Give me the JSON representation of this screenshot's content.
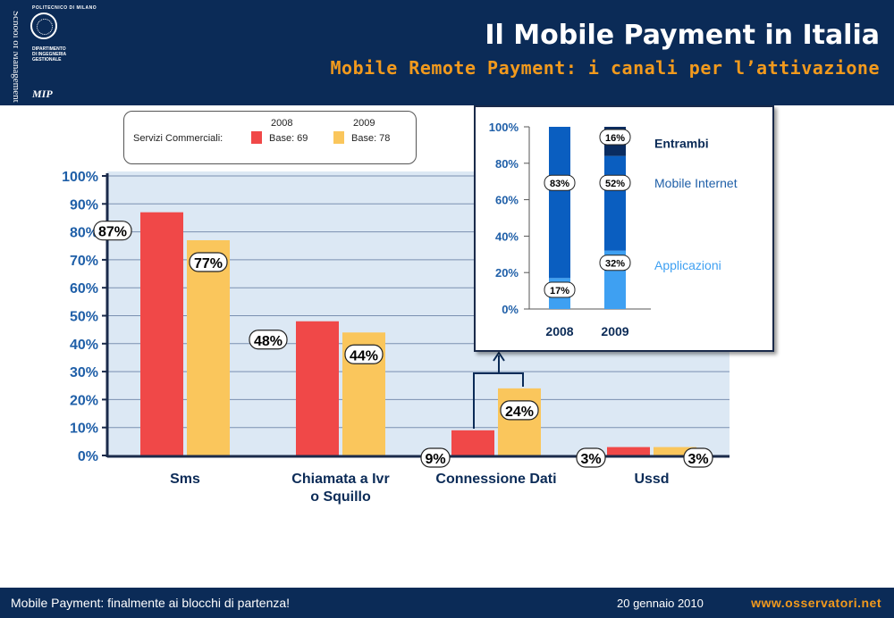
{
  "header": {
    "side_text": "School of Management",
    "university": "POLITECNICO DI MILANO",
    "department": [
      "DIPARTIMENTO",
      "DI INGEGNERIA",
      "GESTIONALE"
    ],
    "mip": "MIP",
    "title": "Il Mobile Payment in Italia",
    "subtitle": "Mobile Remote Payment: i canali per l’attivazione"
  },
  "legend": {
    "label": "Servizi Commerciali:",
    "entries": [
      {
        "year": "2008",
        "base": "Base: 69",
        "color": "#f04848"
      },
      {
        "year": "2009",
        "base": "Base: 78",
        "color": "#fac65c"
      }
    ]
  },
  "footer": {
    "left": "Mobile Payment: finalmente ai blocchi di partenza!",
    "date": "20 gennaio 2010",
    "url": "www.osservatori.net"
  },
  "chart_data": [
    {
      "type": "bar",
      "categories": [
        "Sms",
        "Chiamata a Ivr\no Squillo",
        "Connessione Dati",
        "Ussd"
      ],
      "category_lines": [
        [
          "Sms"
        ],
        [
          "Chiamata a Ivr",
          "o Squillo"
        ],
        [
          "Connessione Dati"
        ],
        [
          "Ussd"
        ]
      ],
      "series": [
        {
          "name": "2008",
          "values": [
            87,
            48,
            9,
            3
          ],
          "labels": [
            "87%",
            "48%",
            "9%",
            "3%"
          ],
          "color": "#f04848"
        },
        {
          "name": "2009",
          "values": [
            77,
            44,
            24,
            3
          ],
          "labels": [
            "77%",
            "44%",
            "24%",
            "3%"
          ],
          "color": "#fac65c"
        }
      ],
      "ylim": [
        0,
        100
      ],
      "yticks": [
        "0%",
        "10%",
        "20%",
        "30%",
        "40%",
        "50%",
        "60%",
        "70%",
        "80%",
        "90%",
        "100%"
      ],
      "grid": true
    },
    {
      "type": "bar",
      "stacked": true,
      "categories": [
        "2008",
        "2009"
      ],
      "series": [
        {
          "name": "Applicazioni",
          "values": [
            17,
            32
          ],
          "labels": [
            "17%",
            "32%"
          ],
          "color": "#3ea0f2"
        },
        {
          "name": "Mobile Internet",
          "values": [
            83,
            52
          ],
          "labels": [
            "83%",
            "52%"
          ],
          "color": "#0a5ec0"
        },
        {
          "name": "Entrambi",
          "values": [
            0,
            16
          ],
          "labels": [
            "",
            "16%"
          ],
          "color": "#0a2c60"
        }
      ],
      "ylim": [
        0,
        100
      ],
      "yticks": [
        "0%",
        "20%",
        "40%",
        "60%",
        "80%",
        "100%"
      ]
    }
  ]
}
